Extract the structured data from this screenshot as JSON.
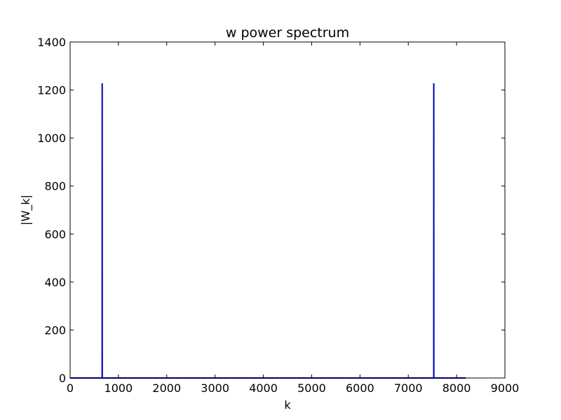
{
  "chart_data": {
    "type": "line",
    "title": "w power spectrum",
    "xlabel": "k",
    "ylabel": "|W_k|",
    "xlim": [
      0,
      9000
    ],
    "ylim": [
      0,
      1400
    ],
    "xticks": [
      0,
      1000,
      2000,
      3000,
      4000,
      5000,
      6000,
      7000,
      8000,
      9000
    ],
    "yticks": [
      0,
      200,
      400,
      600,
      800,
      1000,
      1200,
      1400
    ],
    "grid": false,
    "series": [
      {
        "color": "#0000bf",
        "x": [
          0,
          663,
          664,
          665,
          7527,
          7528,
          7529,
          8191
        ],
        "y": [
          0,
          0,
          1228,
          0,
          0,
          1228,
          0,
          0
        ]
      }
    ]
  }
}
